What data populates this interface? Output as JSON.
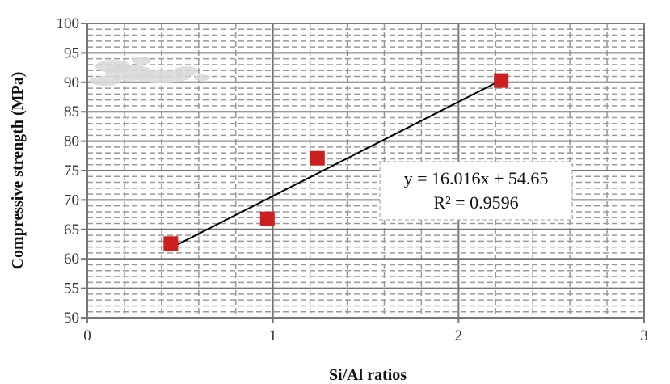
{
  "chart_data": {
    "type": "scatter",
    "title": "",
    "xlabel": "Si/Al ratios",
    "ylabel": "Compressive strength (MPa)",
    "xlim": [
      0,
      3
    ],
    "ylim": [
      50,
      100
    ],
    "xticks": [
      0,
      1,
      2,
      3
    ],
    "yticks": [
      50,
      55,
      60,
      65,
      70,
      75,
      80,
      85,
      90,
      95,
      100
    ],
    "x_tick_labels": [
      "0",
      "1",
      "2",
      "3"
    ],
    "y_tick_labels": [
      "50",
      "55",
      "60",
      "65",
      "70",
      "75",
      "80",
      "85",
      "90",
      "95",
      "100"
    ],
    "grid": true,
    "series": [
      {
        "name": "Compressive strength",
        "color": "#cc1f1f",
        "marker": "square",
        "x": [
          0.45,
          0.97,
          1.24,
          2.23
        ],
        "y": [
          62.6,
          66.8,
          77.1,
          90.3
        ]
      }
    ],
    "trendline": {
      "type": "linear",
      "slope": 16.016,
      "intercept": 54.65,
      "x_range": [
        0.45,
        2.23
      ],
      "color": "#000000"
    },
    "annotations": {
      "equation": "y = 16.016x + 54.65",
      "r_squared": "R² = 0.9596"
    }
  }
}
